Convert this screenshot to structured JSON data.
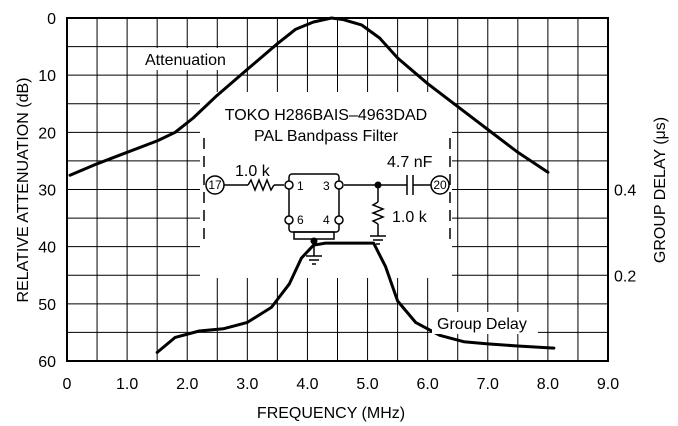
{
  "chart_data": {
    "type": "line",
    "xlabel": "FREQUENCY (MHz)",
    "ylabel_left": "RELATIVE ATTENUATION (dB)",
    "ylabel_right": "GROUP DELAY (μs)",
    "x_ticks": [
      "0",
      "1.0",
      "2.0",
      "3.0",
      "4.0",
      "5.0",
      "6.0",
      "7.0",
      "8.0",
      "9.0"
    ],
    "y_left_ticks": [
      "0",
      "10",
      "20",
      "30",
      "40",
      "50",
      "60"
    ],
    "y_right_ticks": [
      "0.4",
      "0.2"
    ],
    "xlim": [
      0,
      9
    ],
    "ylim_left": [
      0,
      60
    ],
    "y_left_inverted": true,
    "ylim_right": [
      0,
      0.8
    ],
    "grid": true,
    "series": [
      {
        "name": "Attenuation",
        "axis": "left",
        "x": [
          0.05,
          0.5,
          1.0,
          1.5,
          1.8,
          2.1,
          2.5,
          3.0,
          3.5,
          3.8,
          4.1,
          4.4,
          4.6,
          4.9,
          5.2,
          5.5,
          6.0,
          6.5,
          7.0,
          7.5,
          8.0
        ],
        "y": [
          27.5,
          25.5,
          23.5,
          21.5,
          20,
          17.5,
          13.5,
          9,
          4.5,
          2,
          0.7,
          0,
          0.3,
          1.2,
          3.5,
          7,
          11.5,
          15.5,
          19.5,
          23.5,
          27
        ]
      },
      {
        "name": "Group Delay",
        "axis": "right",
        "x": [
          1.5,
          1.8,
          2.2,
          2.6,
          3.0,
          3.4,
          3.7,
          3.9,
          4.1,
          4.3,
          4.6,
          4.9,
          5.1,
          5.3,
          5.5,
          5.8,
          6.2,
          6.6,
          7.0,
          7.5,
          8.1
        ],
        "y": [
          0.02,
          0.055,
          0.07,
          0.075,
          0.09,
          0.125,
          0.18,
          0.24,
          0.27,
          0.275,
          0.275,
          0.275,
          0.275,
          0.22,
          0.14,
          0.09,
          0.06,
          0.045,
          0.04,
          0.035,
          0.03
        ]
      }
    ]
  },
  "inset": {
    "title_line1": "TOKO H286BAIS–4963DAD",
    "title_line2": "PAL Bandpass Filter",
    "node_in": "17",
    "node_out": "20",
    "r1_label": "1.0 k",
    "r2_label": "1.0 k",
    "c_label": "4.7 nF",
    "pins": [
      "1",
      "3",
      "6",
      "4"
    ]
  }
}
